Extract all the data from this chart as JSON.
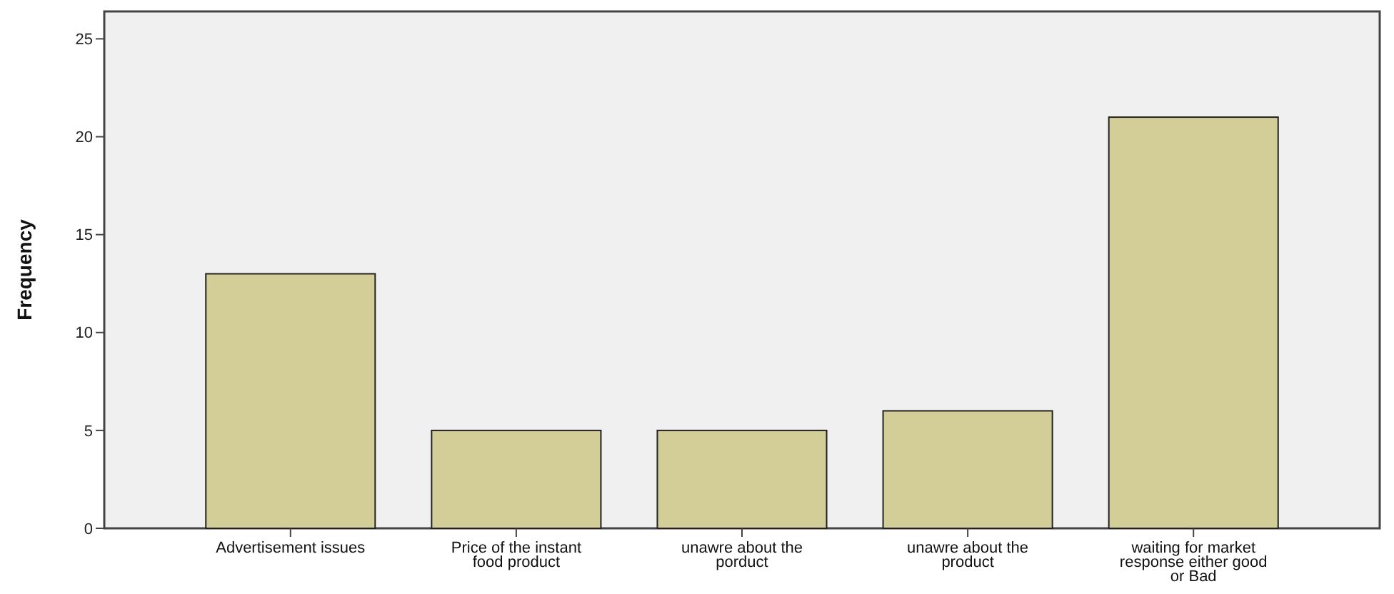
{
  "chart_data": {
    "type": "bar",
    "ylabel": "Frequency",
    "categories": [
      "Advertisement issues",
      "Price of the instant food product",
      "unawre about the porduct",
      "unawre about the product",
      "waiting for market response either good or Bad"
    ],
    "values": [
      13,
      5,
      5,
      6,
      21
    ],
    "color": "#d3ce97",
    "ylim": [
      0,
      26.4
    ],
    "yticks": [
      0,
      5,
      10,
      15,
      20,
      25
    ],
    "grid": false
  }
}
